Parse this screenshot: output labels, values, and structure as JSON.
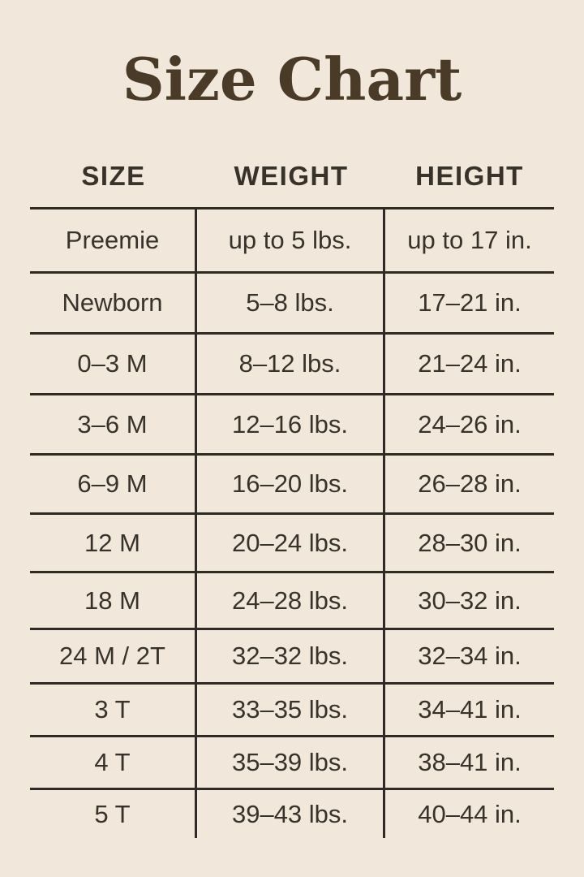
{
  "chart_data": {
    "type": "table",
    "title": "Size Chart",
    "columns": [
      "SIZE",
      "WEIGHT",
      "HEIGHT"
    ],
    "rows": [
      [
        "Preemie",
        "up to 5 lbs.",
        "up to 17 in."
      ],
      [
        "Newborn",
        "5–8 lbs.",
        "17–21 in."
      ],
      [
        "0–3 M",
        "8–12 lbs.",
        "21–24 in."
      ],
      [
        "3–6 M",
        "12–16 lbs.",
        "24–26 in."
      ],
      [
        "6–9 M",
        "16–20 lbs.",
        "26–28 in."
      ],
      [
        "12 M",
        "20–24 lbs.",
        "28–30 in."
      ],
      [
        "18 M",
        "24–28 lbs.",
        "30–32 in."
      ],
      [
        "24 M / 2T",
        "32–32 lbs.",
        "32–34 in."
      ],
      [
        "3 T",
        "33–35 lbs.",
        "34–41 in."
      ],
      [
        "4 T",
        "35–39 lbs.",
        "38–41 in."
      ],
      [
        "5 T",
        "39–43 lbs.",
        "40–44 in."
      ]
    ],
    "layout": {
      "grid": "horizontal rules between all rows, vertical rules between columns, no outer side borders, no bottom border",
      "legend_position": "none"
    }
  },
  "colors": {
    "bg": "#f1e8db",
    "ink": "#39322a",
    "line": "#2f2a23",
    "title": "#4a3a28"
  }
}
